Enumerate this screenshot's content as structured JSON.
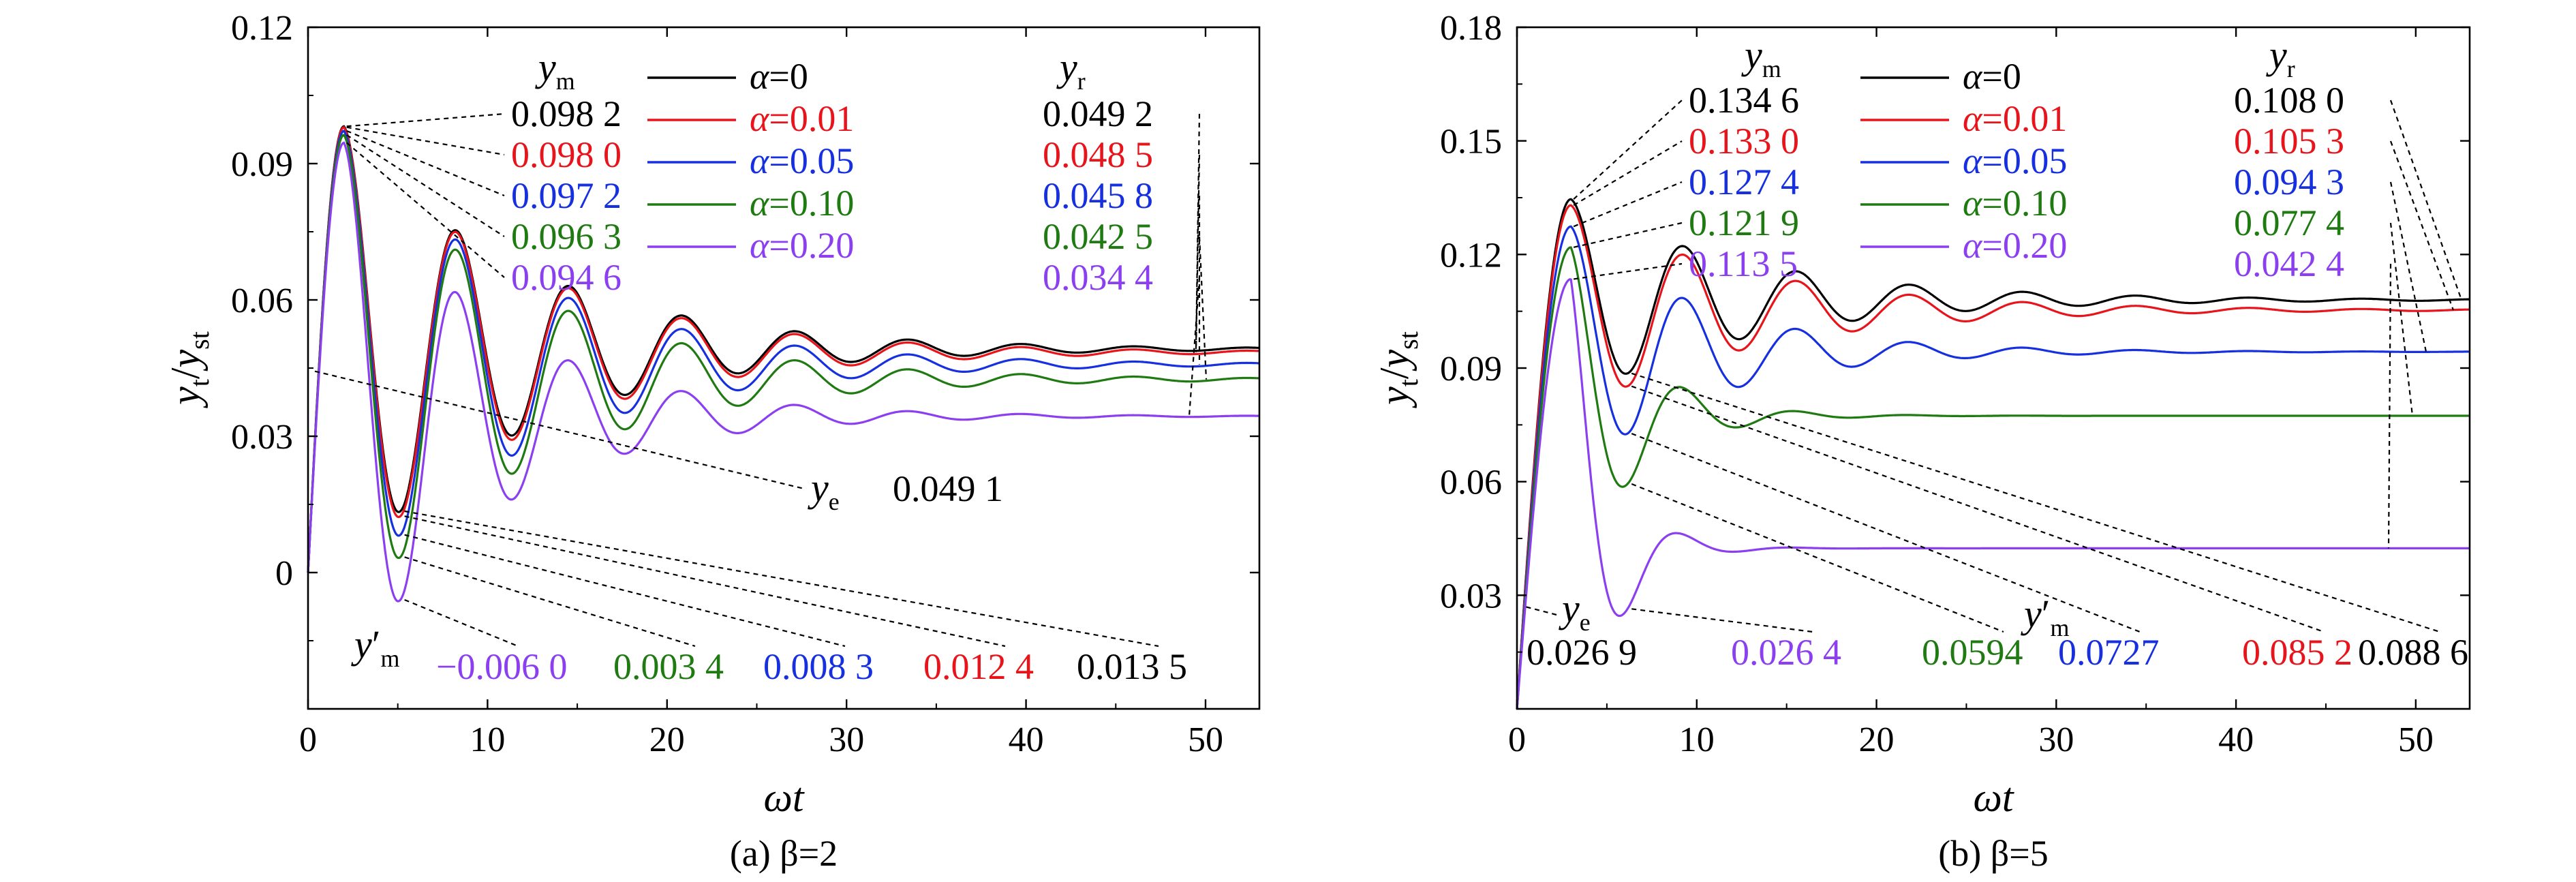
{
  "colors": {
    "alpha_0": "#000000",
    "alpha_0.01": "#e8141b",
    "alpha_0.05": "#1630e0",
    "alpha_0.10": "#1f7a12",
    "alpha_0.20": "#8b3ff0"
  },
  "chart_data": [
    {
      "type": "line",
      "caption": "(a) β=2",
      "xlabel": "ωt",
      "ylabel": "yt/yst",
      "xlim": [
        0,
        53
      ],
      "ylim": [
        -0.03,
        0.12
      ],
      "xticks": [
        0,
        10,
        20,
        30,
        40,
        50
      ],
      "yticks": [
        0,
        0.03,
        0.06,
        0.09,
        0.12
      ],
      "xtick_labels": [
        "0",
        "10",
        "20",
        "30",
        "40",
        "50"
      ],
      "ytick_labels": [
        "0",
        "0.03",
        "0.06",
        "0.09",
        "0.12"
      ],
      "grid": false,
      "legend_position": "top-center",
      "period": 6.3,
      "decay": 6.5,
      "first_peak_t": 2.0,
      "series": [
        {
          "name": "α=0",
          "ym": 0.0982,
          "yr": 0.0492,
          "ymin": 0.0135
        },
        {
          "name": "α=0.01",
          "ym": 0.098,
          "yr": 0.0485,
          "ymin": 0.0124
        },
        {
          "name": "α=0.05",
          "ym": 0.0972,
          "yr": 0.0458,
          "ymin": 0.0083
        },
        {
          "name": "α=0.10",
          "ym": 0.0963,
          "yr": 0.0425,
          "ymin": 0.0034
        },
        {
          "name": "α=0.20",
          "ym": 0.0946,
          "yr": 0.0344,
          "ymin": -0.006
        }
      ],
      "labels": {
        "ym_header": "ym",
        "yr_header": "yr",
        "ymprime_header": "y′m",
        "ye_label": "ye",
        "ym_values": [
          "0.098 2",
          "0.098 0",
          "0.097 2",
          "0.096 3",
          "0.094 6"
        ],
        "yr_values": [
          "0.049 2",
          "0.048 5",
          "0.045 8",
          "0.042 5",
          "0.034 4"
        ],
        "ymprime_values": [
          "−0.006 0",
          "0.003 4",
          "0.008 3",
          "0.012 4",
          "0.013 5"
        ],
        "ye_values": [
          "0.049 1"
        ]
      }
    },
    {
      "type": "line",
      "caption": "(b) β=5",
      "xlabel": "ωt",
      "ylabel": "yt/yst",
      "xlim": [
        0,
        53
      ],
      "ylim": [
        0,
        0.18
      ],
      "xticks": [
        0,
        10,
        20,
        30,
        40,
        50
      ],
      "yticks": [
        0.03,
        0.06,
        0.09,
        0.12,
        0.15,
        0.18
      ],
      "xtick_labels": [
        "0",
        "10",
        "20",
        "30",
        "40",
        "50"
      ],
      "ytick_labels": [
        "0.03",
        "0.06",
        "0.09",
        "0.12",
        "0.15",
        "0.18"
      ],
      "grid": false,
      "legend_position": "top-center",
      "period": 6.3,
      "decay": 7.0,
      "first_peak_t": 3.0,
      "series": [
        {
          "name": "α=0",
          "ym": 0.1346,
          "yr": 0.108,
          "ymin": 0.0886
        },
        {
          "name": "α=0.01",
          "ym": 0.133,
          "yr": 0.1053,
          "ymin": 0.0852
        },
        {
          "name": "α=0.05",
          "ym": 0.1274,
          "yr": 0.0943,
          "ymin": 0.0727
        },
        {
          "name": "α=0.10",
          "ym": 0.1219,
          "yr": 0.0774,
          "ymin": 0.0594
        },
        {
          "name": "α=0.20",
          "ym": 0.1135,
          "yr": 0.0424,
          "ymin": 0.0264
        }
      ],
      "labels": {
        "ym_header": "ym",
        "yr_header": "yr",
        "ymprime_header": "y′m",
        "ye_label": "ye",
        "ym_values": [
          "0.134 6",
          "0.133 0",
          "0.127 4",
          "0.121 9",
          "0.113 5"
        ],
        "yr_values": [
          "0.108 0",
          "0.105 3",
          "0.094 3",
          "0.077 4",
          "0.042 4"
        ],
        "ymprime_values": [
          "0.026 4",
          "0.0594",
          "0.0727",
          "0.085 2",
          "0.088 6"
        ],
        "ye_values": [
          "0.026 9"
        ]
      }
    }
  ]
}
